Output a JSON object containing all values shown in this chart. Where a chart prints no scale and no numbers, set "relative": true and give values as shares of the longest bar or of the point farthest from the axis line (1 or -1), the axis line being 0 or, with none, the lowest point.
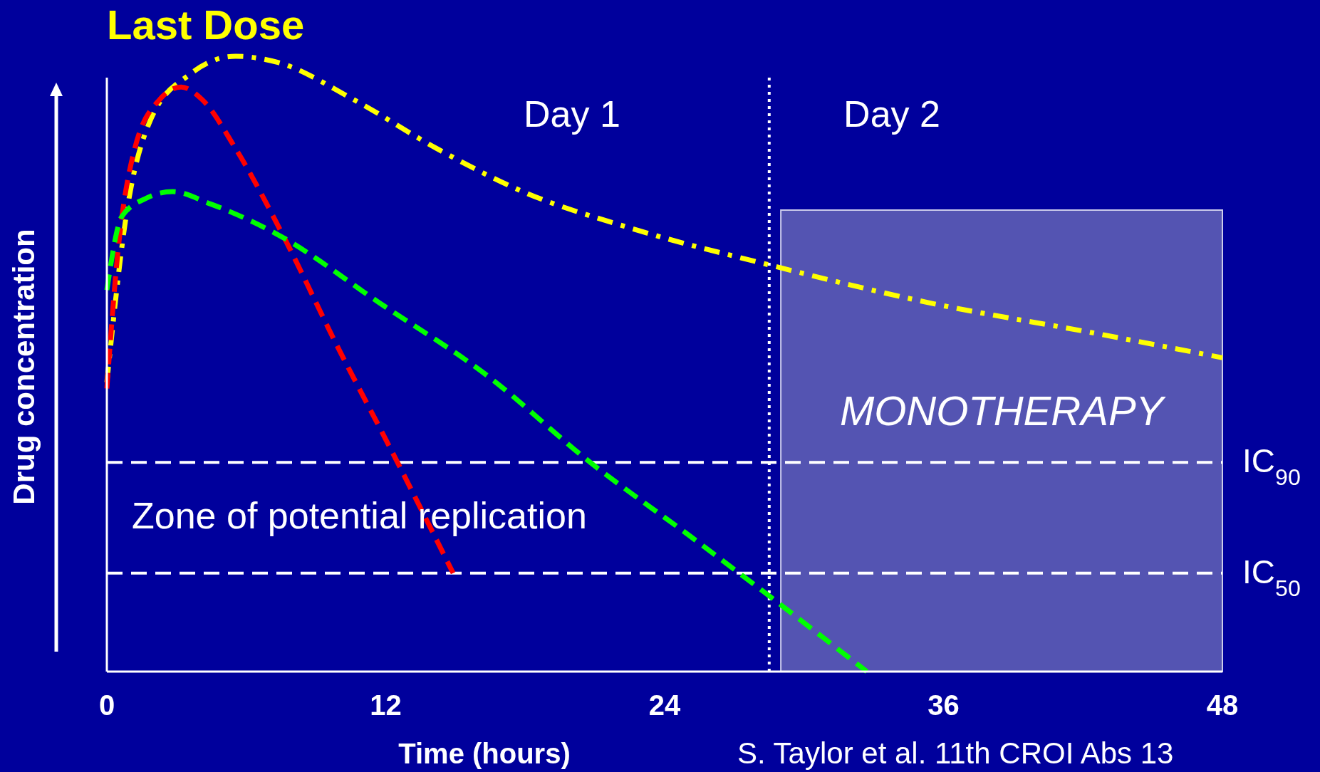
{
  "chart_data": {
    "type": "line",
    "title": "Last Dose",
    "xlabel": "Time (hours)",
    "ylabel": "Drug concentration",
    "relative": true,
    "xlim": [
      0,
      48
    ],
    "xticks": [
      0,
      12,
      24,
      36,
      48
    ],
    "line_style": "dashed",
    "series": [
      {
        "color": "#ffff00",
        "x": [
          0,
          0.83,
          1.92,
          3.55,
          5.54,
          7.36,
          10.6,
          14.2,
          17.9,
          22.6,
          28.6,
          35.3,
          42.5,
          48
        ],
        "values": [
          0.47,
          0.74,
          0.9,
          0.97,
          1,
          0.99,
          0.93,
          0.85,
          0.78,
          0.72,
          0.66,
          0.6,
          0.55,
          0.51
        ]
      },
      {
        "color": "#ff0000",
        "x": [
          0,
          0.47,
          1.2,
          2.28,
          3.19,
          4.09,
          5.54,
          7.7,
          9.9,
          12.1,
          14.9
        ],
        "values": [
          0.46,
          0.68,
          0.85,
          0.93,
          0.95,
          0.93,
          0.85,
          0.7,
          0.53,
          0.37,
          0.16
        ]
      },
      {
        "color": "#00ff00",
        "x": [
          0,
          0.65,
          1.74,
          2.83,
          4.46,
          7.36,
          11.7,
          16.4,
          20.8,
          25.1,
          28.6,
          32.7
        ],
        "values": [
          0.62,
          0.74,
          0.77,
          0.78,
          0.76,
          0.71,
          0.6,
          0.48,
          0.34,
          0.22,
          0.12,
          0
        ]
      }
    ],
    "ref_lines": [
      {
        "axis": "y",
        "value": 0.34,
        "label": "IC$_{90}$",
        "color": "#ffffff",
        "line_style": "dashed"
      },
      {
        "axis": "y",
        "value": 0.16,
        "label": "IC$_{50}$",
        "color": "#ffffff",
        "line_style": "dashed"
      },
      {
        "axis": "x",
        "value": 28.5,
        "color": "#ffffff",
        "line_style": "dotted"
      }
    ],
    "bands": [
      {
        "axis": "x",
        "from": 29,
        "to": 48,
        "label": "MONOTHERAPY",
        "color": "#6a6ab8"
      }
    ],
    "annotations": [
      "Day 1",
      "Day 2",
      "Zone of potential replication",
      "S. Taylor et al. 11th CROI  Abs 13"
    ]
  }
}
